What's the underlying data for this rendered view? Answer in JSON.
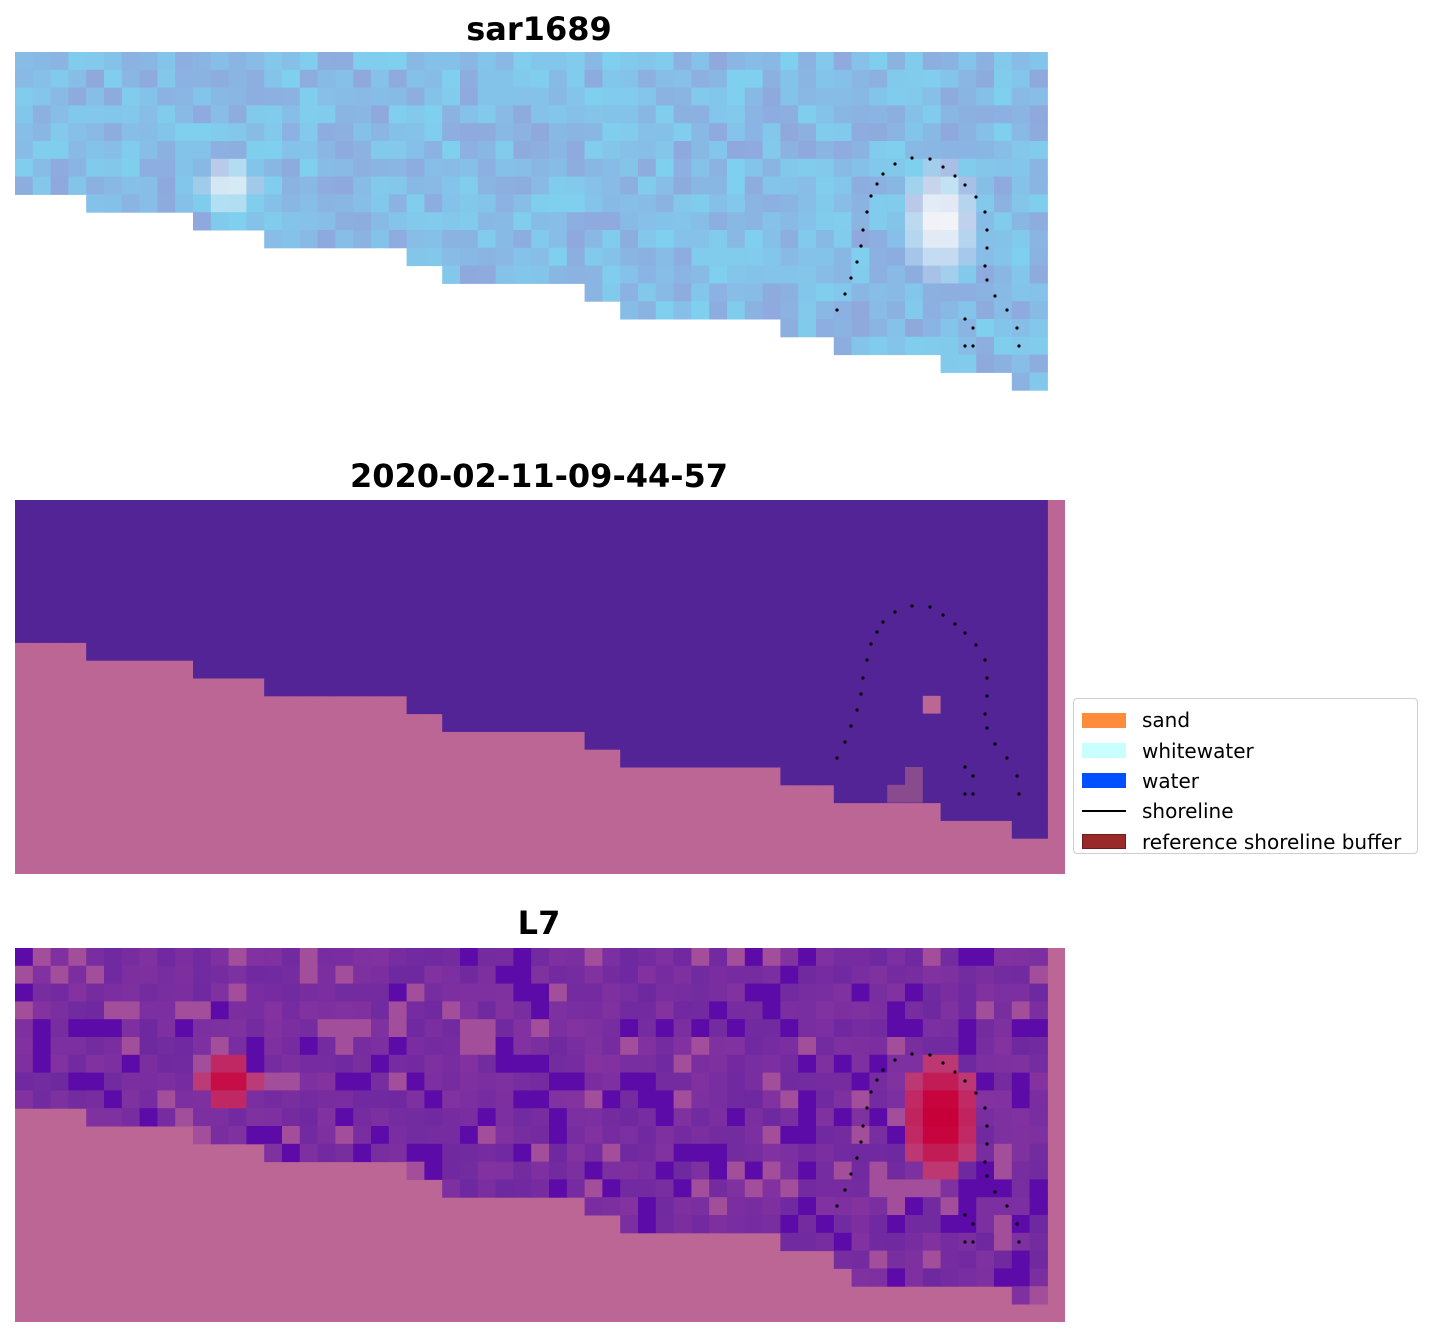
{
  "panels": [
    {
      "id": "p1",
      "title": "sar1689",
      "kind": "rgb"
    },
    {
      "id": "p2",
      "title": "2020-02-11-09-44-57",
      "kind": "classified"
    },
    {
      "id": "p3",
      "title": "L7",
      "kind": "index"
    }
  ],
  "legend": {
    "items": [
      {
        "label": "sand",
        "color": "#ff8c3a",
        "type": "patch"
      },
      {
        "label": "whitewater",
        "color": "#c8ffff",
        "type": "patch"
      },
      {
        "label": "water",
        "color": "#0050ff",
        "type": "patch"
      },
      {
        "label": "shoreline",
        "color": "#000000",
        "type": "line"
      },
      {
        "label": "reference shoreline buffer",
        "color": "#9a2a2a",
        "type": "patch"
      }
    ]
  },
  "colors": {
    "land_mask": "#bb6695",
    "water_class": "#522496",
    "rgb_base": "#7fc4e0",
    "index_base": "#7a2a9c",
    "index_hot": "#c8103c"
  }
}
